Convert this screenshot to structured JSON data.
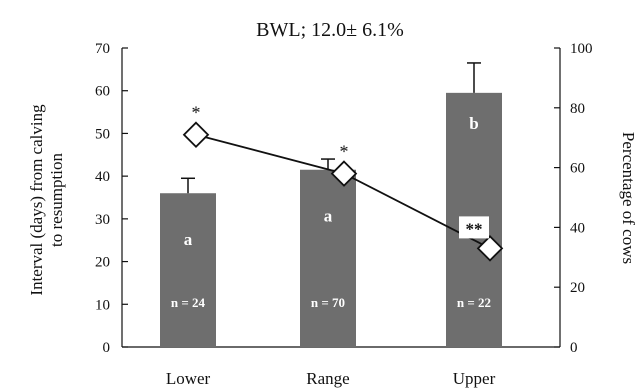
{
  "chart_data": {
    "type": "bar",
    "title": "BWL; 12.0± 6.1%",
    "categories": [
      "Lower",
      "Range",
      "Upper"
    ],
    "ylabel_left": "Interval (days) from calving to resumption",
    "ylabel_left_lines": [
      "Interval (days) from calving",
      "to resumption"
    ],
    "ylabel_right": "Percentage of cows",
    "ylim_left": [
      0,
      70
    ],
    "ylim_right": [
      0,
      100
    ],
    "yticks_left": [
      0,
      10,
      20,
      30,
      40,
      50,
      60,
      70
    ],
    "yticks_right": [
      0,
      20,
      40,
      60,
      80,
      100
    ],
    "series": [
      {
        "type": "bar",
        "axis": "left",
        "color": "#6e6e6e",
        "values": [
          36,
          41.5,
          59.5
        ],
        "errors": [
          3.5,
          2.5,
          7
        ],
        "letters": [
          "a",
          "a",
          "b"
        ],
        "n_labels": [
          "n =  24",
          "n = 70",
          "n = 22"
        ]
      },
      {
        "type": "line",
        "axis": "right",
        "marker": "diamond",
        "values": [
          71,
          58,
          33
        ],
        "annotations": [
          "*",
          "*",
          "**"
        ]
      }
    ]
  }
}
